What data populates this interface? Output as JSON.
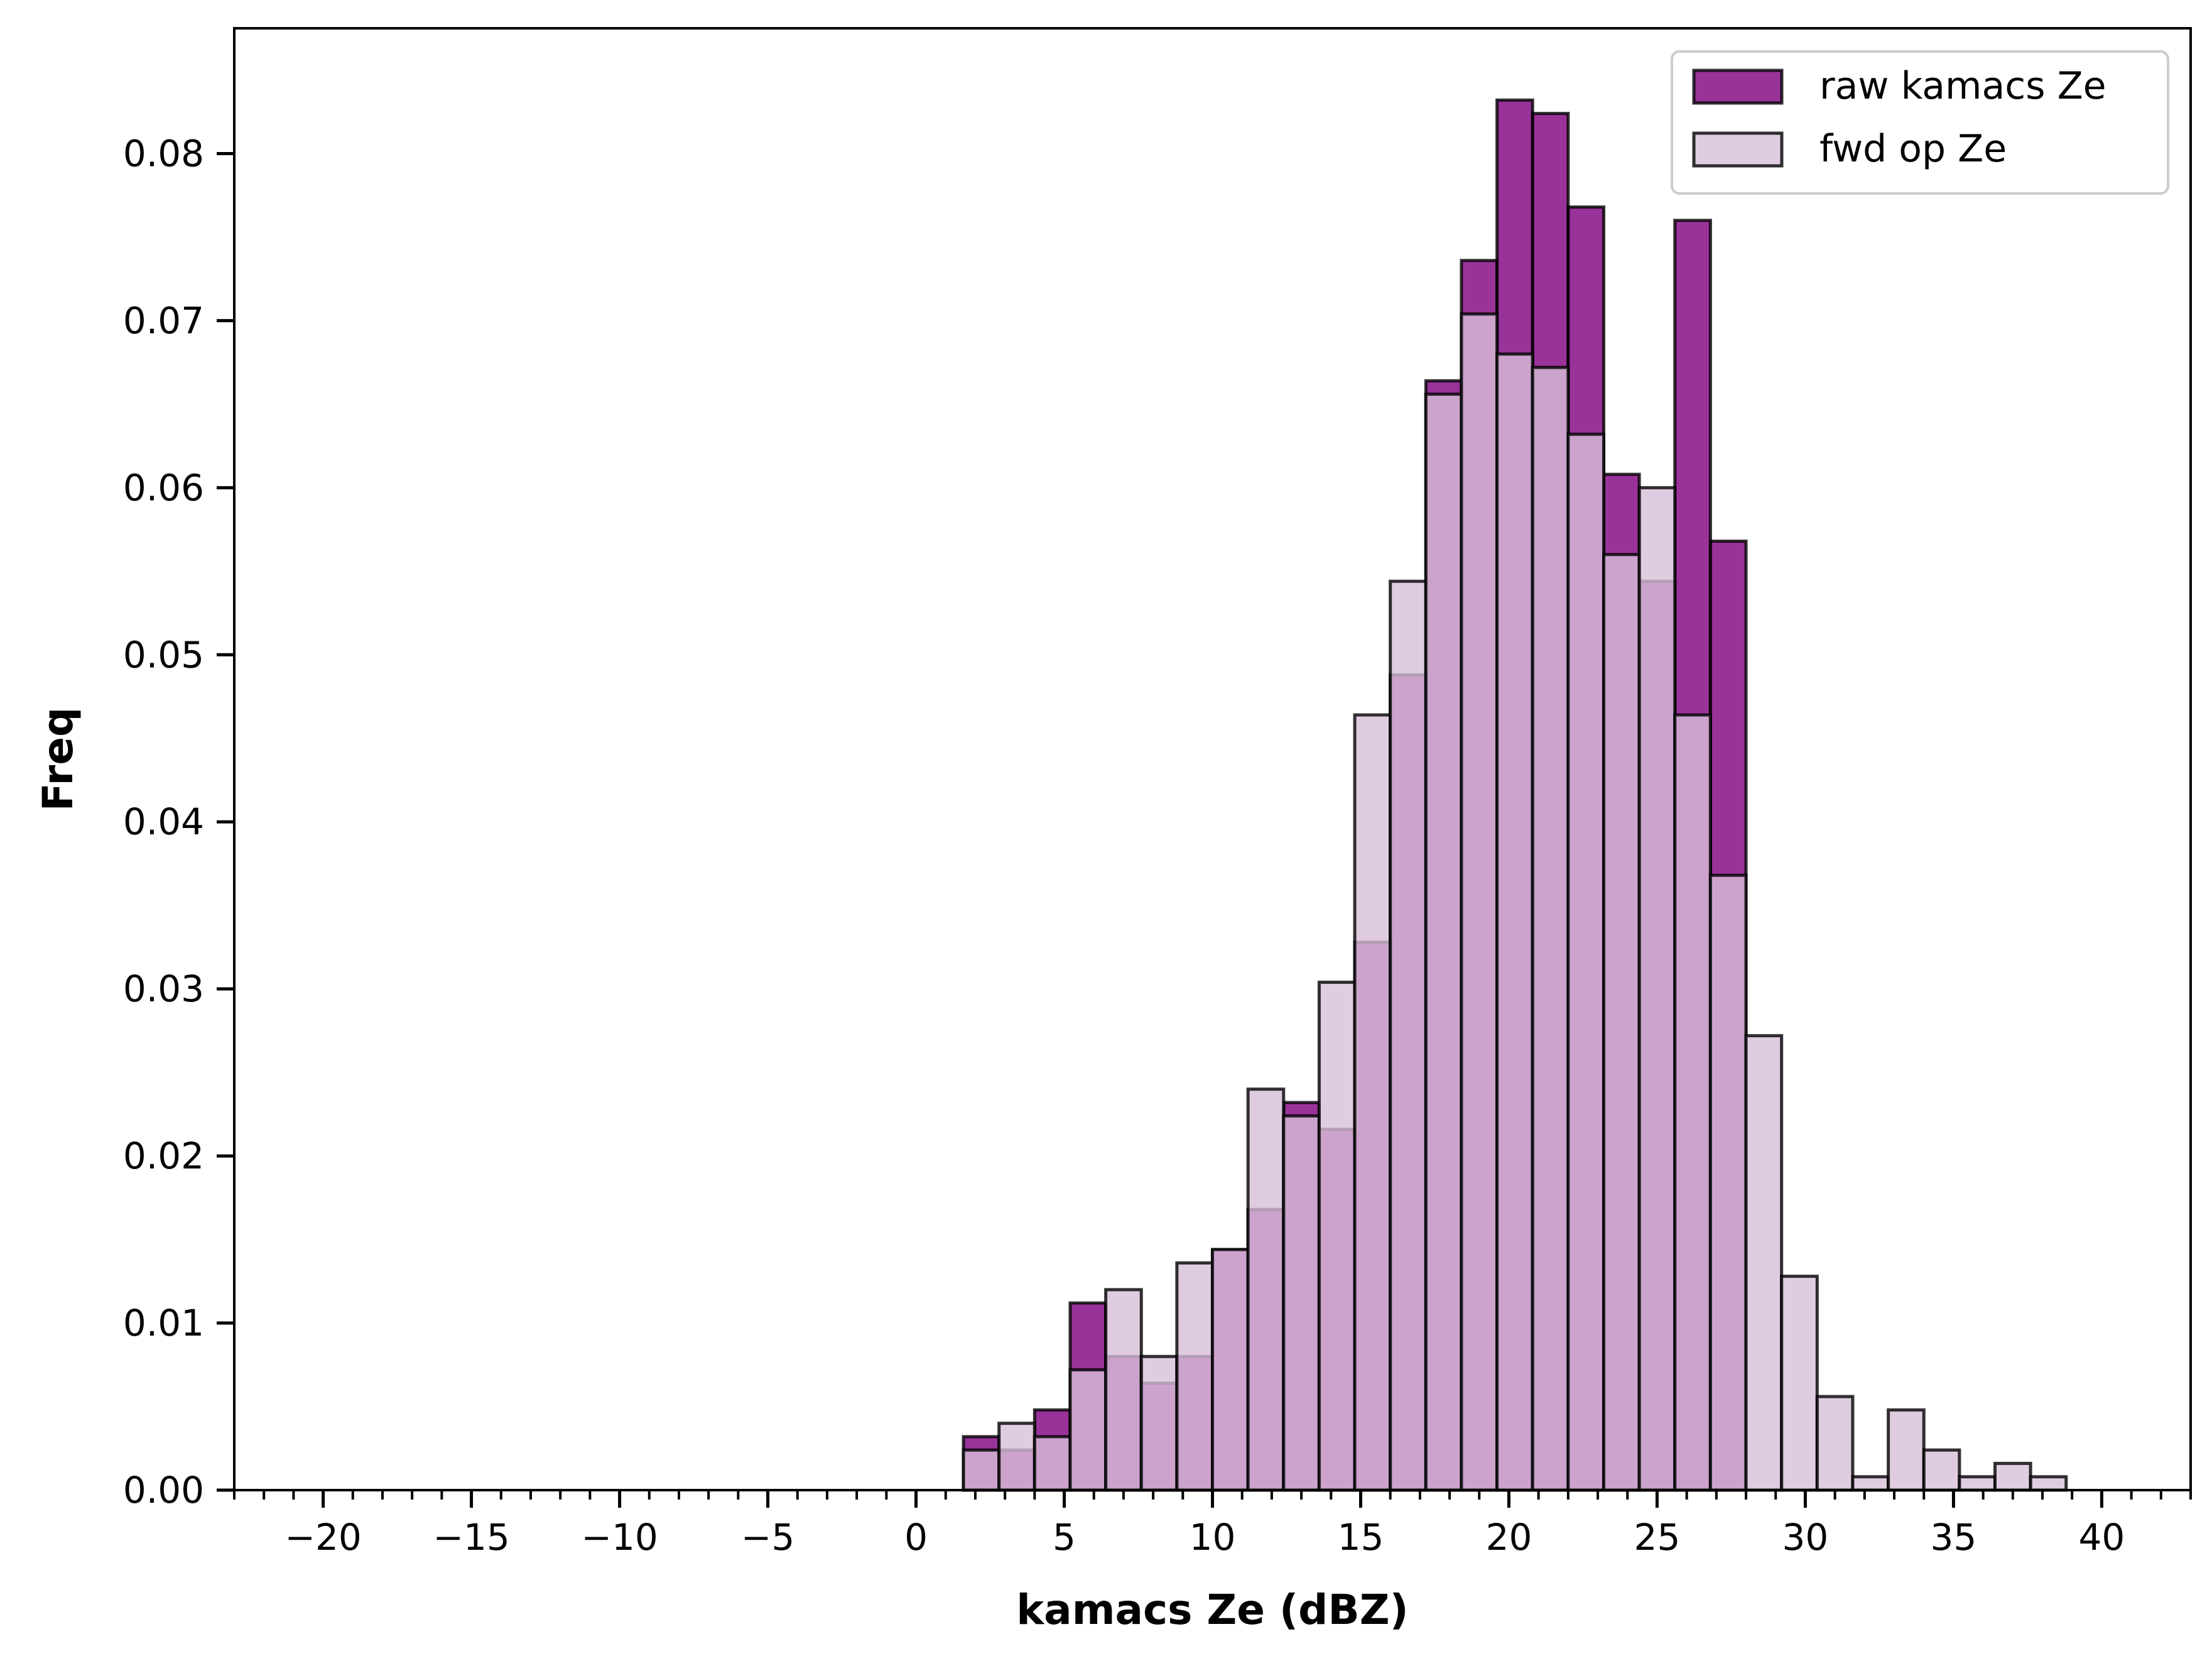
{
  "chart_data": {
    "type": "bar",
    "subtype": "overlaid histogram",
    "title": "",
    "xlabel": "kamacs Ze (dBZ)",
    "ylabel": "Freq",
    "xlim": [
      -23,
      43
    ],
    "ylim": [
      0,
      0.0875
    ],
    "xticks": [
      -20,
      -15,
      -10,
      -5,
      0,
      5,
      10,
      15,
      20,
      25,
      30,
      35,
      40
    ],
    "xtick_labels": [
      "−20",
      "−15",
      "−10",
      "−5",
      "0",
      "5",
      "10",
      "15",
      "20",
      "25",
      "30",
      "35",
      "40"
    ],
    "xminor_step": 1,
    "yticks": [
      0.0,
      0.01,
      0.02,
      0.03,
      0.04,
      0.05,
      0.06,
      0.07,
      0.08
    ],
    "ytick_labels": [
      "0.00",
      "0.01",
      "0.02",
      "0.03",
      "0.04",
      "0.05",
      "0.06",
      "0.07",
      "0.08"
    ],
    "grid": false,
    "legend_position": "top-right",
    "bin_edges": [
      1.6,
      2.8,
      4.0,
      5.2,
      6.4,
      7.6,
      8.8,
      10.0,
      11.2,
      12.4,
      13.6,
      14.8,
      16.0,
      17.2,
      18.4,
      19.6,
      20.8,
      22.0,
      23.2,
      24.4,
      25.6,
      26.8,
      28.0,
      29.2,
      30.4,
      31.6,
      32.8,
      34.0,
      35.2,
      36.4,
      37.6,
      38.8
    ],
    "series": [
      {
        "name": "raw kamacs Ze",
        "color": "#800080",
        "opacity": 0.8,
        "values": [
          0.0032,
          0.0024,
          0.0048,
          0.0112,
          0.008,
          0.0064,
          0.008,
          0.0144,
          0.0168,
          0.0232,
          0.0216,
          0.0328,
          0.0488,
          0.0664,
          0.0736,
          0.0832,
          0.0824,
          0.0768,
          0.0608,
          0.0544,
          0.076,
          0.0568,
          0,
          0,
          0,
          0,
          0,
          0,
          0,
          0,
          0
        ]
      },
      {
        "name": "fwd op Ze",
        "color": "#d8bfd8",
        "opacity": 0.8,
        "values": [
          0.0024,
          0.004,
          0.0032,
          0.0072,
          0.012,
          0.008,
          0.0136,
          0.0144,
          0.024,
          0.0224,
          0.0304,
          0.0464,
          0.0544,
          0.0656,
          0.0704,
          0.068,
          0.0672,
          0.0632,
          0.056,
          0.06,
          0.0464,
          0.0368,
          0.0272,
          0.0128,
          0.0056,
          0.0008,
          0.0048,
          0.0024,
          0.0008,
          0.0016,
          0.0008
        ]
      }
    ]
  }
}
